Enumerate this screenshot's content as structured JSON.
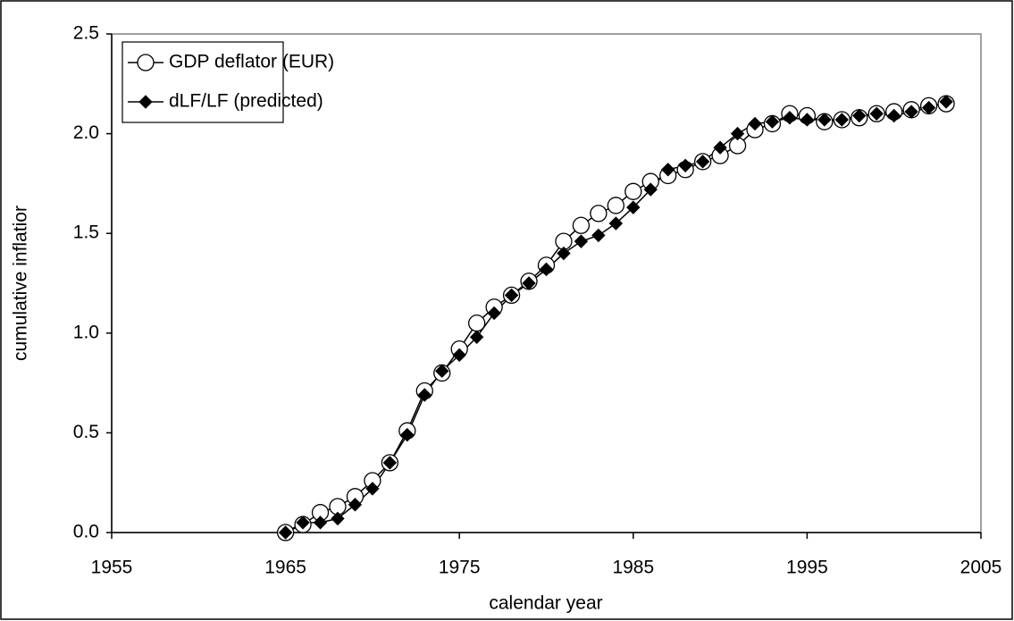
{
  "chart_data": {
    "type": "line",
    "x_label": "calendar year",
    "y_label": "cumulative inflatior",
    "x": [
      1965,
      1966,
      1967,
      1968,
      1969,
      1970,
      1971,
      1972,
      1973,
      1974,
      1975,
      1976,
      1977,
      1978,
      1979,
      1980,
      1981,
      1982,
      1983,
      1984,
      1985,
      1986,
      1987,
      1988,
      1989,
      1990,
      1991,
      1992,
      1993,
      1994,
      1995,
      1996,
      1997,
      1998,
      1999,
      2000,
      2001,
      2002,
      2003
    ],
    "series": [
      {
        "name": "GDP deflator (EUR)",
        "color": "#000000",
        "marker": "circle",
        "values": [
          0.0,
          0.04,
          0.1,
          0.13,
          0.18,
          0.26,
          0.35,
          0.51,
          0.71,
          0.8,
          0.92,
          1.05,
          1.13,
          1.19,
          1.26,
          1.34,
          1.46,
          1.54,
          1.6,
          1.64,
          1.71,
          1.76,
          1.79,
          1.82,
          1.86,
          1.89,
          1.94,
          2.02,
          2.05,
          2.1,
          2.09,
          2.06,
          2.07,
          2.08,
          2.1,
          2.11,
          2.12,
          2.14,
          2.15
        ]
      },
      {
        "name": "dLF/LF (predicted)",
        "color": "#000000",
        "marker": "diamond",
        "values": [
          0.0,
          0.05,
          0.05,
          0.07,
          0.14,
          0.22,
          0.35,
          0.49,
          0.69,
          0.81,
          0.89,
          0.98,
          1.1,
          1.19,
          1.25,
          1.32,
          1.4,
          1.46,
          1.49,
          1.55,
          1.63,
          1.72,
          1.82,
          1.84,
          1.86,
          1.93,
          2.0,
          2.05,
          2.06,
          2.08,
          2.07,
          2.07,
          2.07,
          2.09,
          2.1,
          2.09,
          2.11,
          2.13,
          2.16
        ]
      }
    ],
    "xlim": [
      1955,
      2005
    ],
    "xticks": [
      1955,
      1965,
      1975,
      1985,
      1995,
      2005
    ],
    "ylim": [
      0,
      2.5
    ],
    "yticks": [
      {
        "value": 0,
        "label": "0.0"
      },
      0.5,
      {
        "value": 1,
        "label": "1.0"
      },
      1.5,
      {
        "value": 2,
        "label": "2.0"
      },
      2.5
    ],
    "legend": "upper left"
  }
}
